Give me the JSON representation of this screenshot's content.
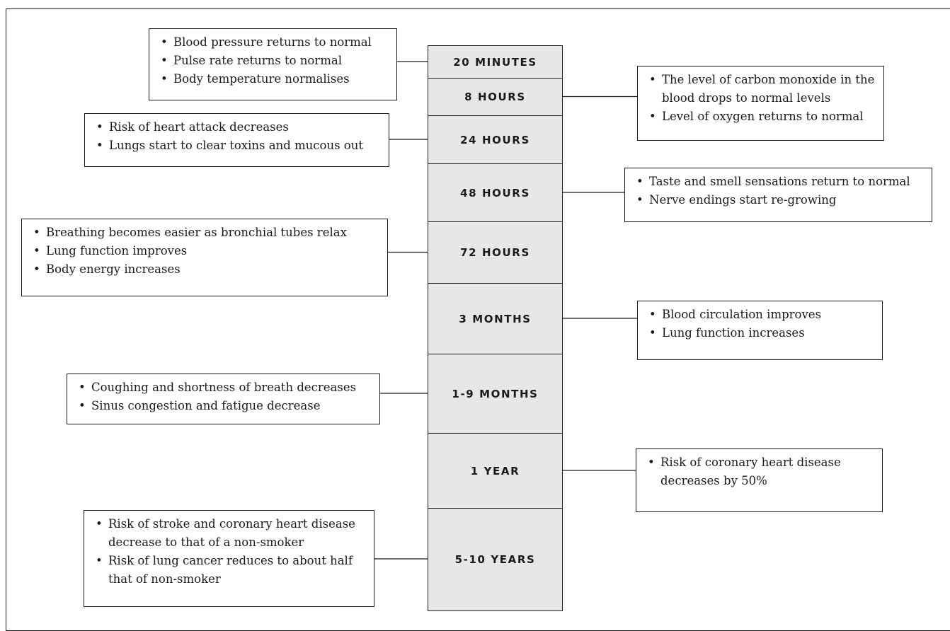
{
  "periods": [
    {
      "label": "20 MINUTES",
      "effects": [
        "Blood pressure returns to normal",
        "Pulse rate returns to normal",
        "Body temperature normalises"
      ]
    },
    {
      "label": "8 HOURS",
      "effects": [
        "The level of carbon monoxide in the blood drops to normal levels",
        "Level of oxygen returns to normal"
      ]
    },
    {
      "label": "24 HOURS",
      "effects": [
        "Risk of heart attack decreases",
        "Lungs start to clear toxins and mucous out"
      ]
    },
    {
      "label": "48 HOURS",
      "effects": [
        "Taste and smell sensations return to normal",
        "Nerve endings start re-growing"
      ]
    },
    {
      "label": "72 HOURS",
      "effects": [
        "Breathing becomes easier as bronchial tubes relax",
        "Lung function improves",
        "Body energy increases"
      ]
    },
    {
      "label": "3 MONTHS",
      "effects": [
        "Blood circulation improves",
        "Lung function increases"
      ]
    },
    {
      "label": "1-9 MONTHS",
      "effects": [
        "Coughing and shortness of breath decreases",
        "Sinus congestion and fatigue decrease"
      ]
    },
    {
      "label": "1 YEAR",
      "effects": [
        "Risk of coronary heart disease decreases by 50%"
      ]
    },
    {
      "label": "5-10 YEARS",
      "effects": [
        "Risk of stroke and coronary heart disease decrease to that of a non-smoker",
        "Risk of lung cancer reduces to about half that of non-smoker"
      ]
    }
  ]
}
